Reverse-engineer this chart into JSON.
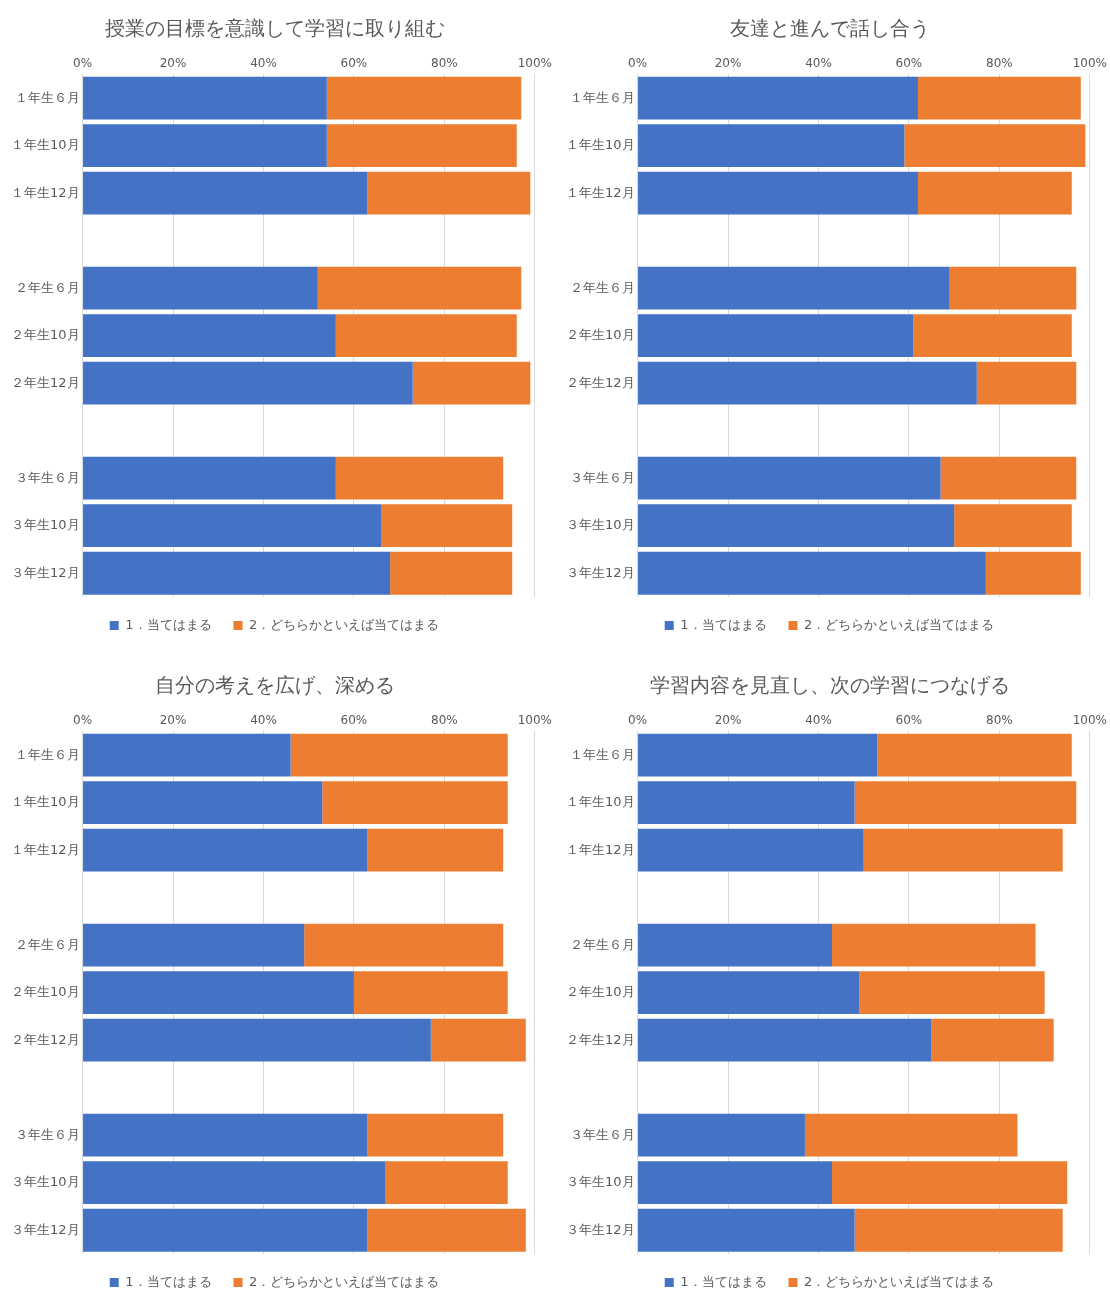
{
  "chart_data": [
    {
      "type": "bar",
      "orientation": "horizontal",
      "stacked": true,
      "title": "授業の目標を意識して学習に取り組む",
      "categories": [
        "１年生６月",
        "１年生10月",
        "１年生12月",
        null,
        "２年生６月",
        "２年生10月",
        "２年生12月",
        null,
        "３年生６月",
        "３年生10月",
        "３年生12月"
      ],
      "series": [
        {
          "name": "1．当てはまる",
          "color": "#4472c4",
          "values": [
            54,
            54,
            63,
            null,
            52,
            56,
            73,
            null,
            56,
            66,
            68
          ]
        },
        {
          "name": "2．どちらかといえば当てはまる",
          "color": "#ed7d31",
          "values": [
            43,
            42,
            36,
            null,
            45,
            40,
            26,
            null,
            37,
            29,
            27
          ]
        }
      ],
      "xlim": [
        0,
        100
      ],
      "xticks": [
        {
          "value": 0,
          "label": "0%"
        },
        {
          "value": 20,
          "label": "20%"
        },
        {
          "value": 40,
          "label": "40%"
        },
        {
          "value": 60,
          "label": "60%"
        },
        {
          "value": 80,
          "label": "80%"
        },
        {
          "value": 100,
          "label": "100%"
        }
      ],
      "grid": "x",
      "legend": "bottom"
    },
    {
      "type": "bar",
      "orientation": "horizontal",
      "stacked": true,
      "title": "友達と進んで話し合う",
      "categories": [
        "１年生６月",
        "１年生10月",
        "１年生12月",
        null,
        "２年生６月",
        "２年生10月",
        "２年生12月",
        null,
        "３年生６月",
        "３年生10月",
        "３年生12月"
      ],
      "series": [
        {
          "name": "1．当てはまる",
          "color": "#4472c4",
          "values": [
            62,
            59,
            62,
            null,
            69,
            61,
            75,
            null,
            67,
            70,
            77
          ]
        },
        {
          "name": "2．どちらかといえば当てはまる",
          "color": "#ed7d31",
          "values": [
            36,
            40,
            34,
            null,
            28,
            35,
            22,
            null,
            30,
            26,
            21
          ]
        }
      ],
      "xlim": [
        0,
        100
      ],
      "xticks": [
        {
          "value": 0,
          "label": "0%"
        },
        {
          "value": 20,
          "label": "20%"
        },
        {
          "value": 40,
          "label": "40%"
        },
        {
          "value": 60,
          "label": "60%"
        },
        {
          "value": 80,
          "label": "80%"
        },
        {
          "value": 100,
          "label": "100%"
        }
      ],
      "grid": "x",
      "legend": "bottom"
    },
    {
      "type": "bar",
      "orientation": "horizontal",
      "stacked": true,
      "title": "自分の考えを広げ、深める",
      "categories": [
        "１年生６月",
        "１年生10月",
        "１年生12月",
        null,
        "２年生６月",
        "２年生10月",
        "２年生12月",
        null,
        "３年生６月",
        "３年生10月",
        "３年生12月"
      ],
      "series": [
        {
          "name": "1．当てはまる",
          "color": "#4472c4",
          "values": [
            46,
            53,
            63,
            null,
            49,
            60,
            77,
            null,
            63,
            67,
            63
          ]
        },
        {
          "name": "2．どちらかといえば当てはまる",
          "color": "#ed7d31",
          "values": [
            48,
            41,
            30,
            null,
            44,
            34,
            21,
            null,
            30,
            27,
            35
          ]
        }
      ],
      "xlim": [
        0,
        100
      ],
      "xticks": [
        {
          "value": 0,
          "label": "0%"
        },
        {
          "value": 20,
          "label": "20%"
        },
        {
          "value": 40,
          "label": "40%"
        },
        {
          "value": 60,
          "label": "60%"
        },
        {
          "value": 80,
          "label": "80%"
        },
        {
          "value": 100,
          "label": "100%"
        }
      ],
      "grid": "x",
      "legend": "bottom"
    },
    {
      "type": "bar",
      "orientation": "horizontal",
      "stacked": true,
      "title": "学習内容を見直し、次の学習につなげる",
      "categories": [
        "１年生６月",
        "１年生10月",
        "１年生12月",
        null,
        "２年生６月",
        "２年生10月",
        "２年生12月",
        null,
        "３年生６月",
        "３年生10月",
        "３年生12月"
      ],
      "series": [
        {
          "name": "1．当てはまる",
          "color": "#4472c4",
          "values": [
            53,
            48,
            50,
            null,
            43,
            49,
            65,
            null,
            37,
            43,
            48
          ]
        },
        {
          "name": "2．どちらかといえば当てはまる",
          "color": "#ed7d31",
          "values": [
            43,
            49,
            44,
            null,
            45,
            41,
            27,
            null,
            47,
            52,
            46
          ]
        }
      ],
      "xlim": [
        0,
        100
      ],
      "xticks": [
        {
          "value": 0,
          "label": "0%"
        },
        {
          "value": 20,
          "label": "20%"
        },
        {
          "value": 40,
          "label": "40%"
        },
        {
          "value": 60,
          "label": "60%"
        },
        {
          "value": 80,
          "label": "80%"
        },
        {
          "value": 100,
          "label": "100%"
        }
      ],
      "grid": "x",
      "legend": "bottom"
    }
  ]
}
